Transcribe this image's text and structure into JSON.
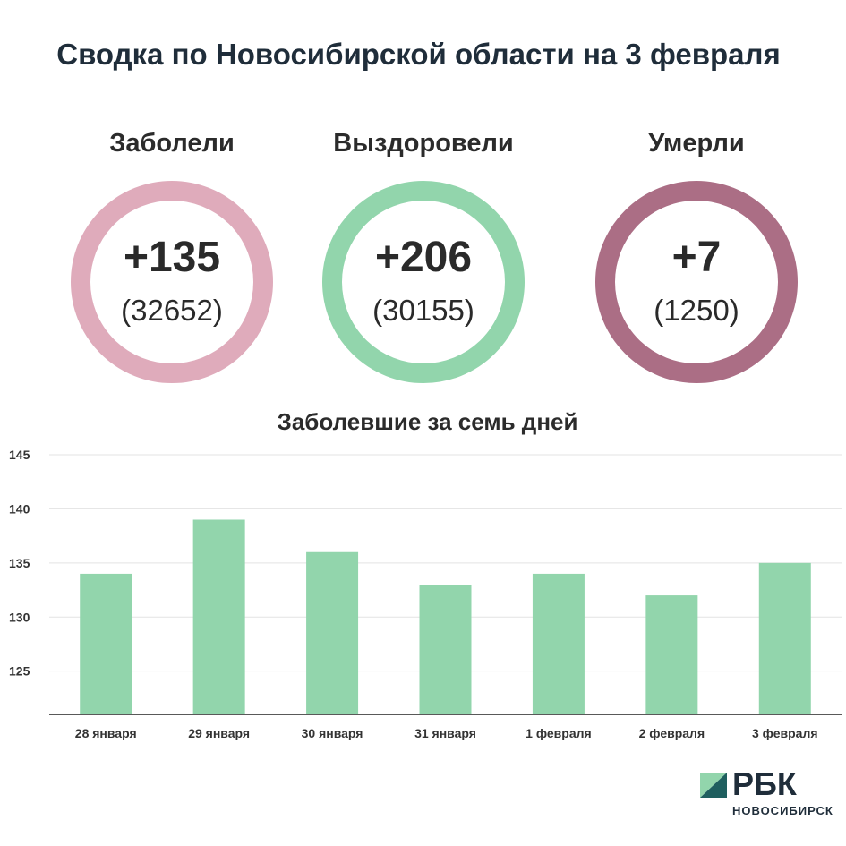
{
  "header": {
    "title": "Сводка по Новосибирской области на 3 февраля"
  },
  "stats": [
    {
      "label": "Заболели",
      "delta": "+135",
      "total": "(32652)",
      "color": "#dfabbb"
    },
    {
      "label": "Выздоровели",
      "delta": "+206",
      "total": "(30155)",
      "color": "#92d5ac"
    },
    {
      "label": "Умерли",
      "delta": "+7",
      "total": "(1250)",
      "color": "#ab6e85"
    }
  ],
  "chart_data": {
    "type": "bar",
    "title": "Заболевшие за семь дней",
    "categories": [
      "28 января",
      "29 января",
      "30 января",
      "31 января",
      "1 февраля",
      "2 февраля",
      "3 февраля"
    ],
    "values": [
      134,
      139,
      136,
      133,
      134,
      132,
      135
    ],
    "ylim": [
      121,
      145
    ],
    "yticks": [
      125,
      130,
      135,
      140,
      145
    ],
    "grid": true,
    "bar_color": "#92d5ac",
    "xlabel": "",
    "ylabel": ""
  },
  "logo": {
    "text": "РБК",
    "sub": "НОВОСИБИРСК",
    "colors": [
      "#92d5ac",
      "#1f5f5f"
    ]
  }
}
